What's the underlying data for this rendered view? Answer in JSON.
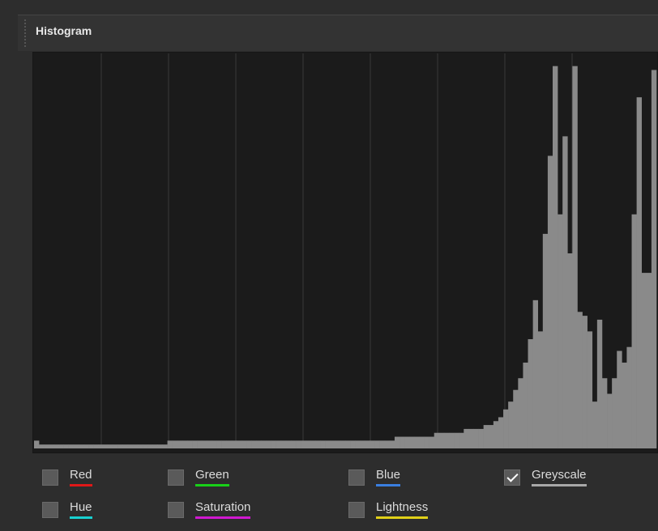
{
  "title": "Histogram",
  "histogram": {
    "ylim": [
      0,
      100
    ],
    "color": "#8a8a8a",
    "values": [
      2,
      1,
      1,
      1,
      1,
      1,
      1,
      1,
      1,
      1,
      1,
      1,
      1,
      1,
      1,
      1,
      1,
      1,
      1,
      1,
      1,
      1,
      1,
      1,
      1,
      1,
      1,
      2,
      2,
      2,
      2,
      2,
      2,
      2,
      2,
      2,
      2,
      2,
      2,
      2,
      2,
      2,
      2,
      2,
      2,
      2,
      2,
      2,
      2,
      2,
      2,
      2,
      2,
      2,
      2,
      2,
      2,
      2,
      2,
      2,
      2,
      2,
      2,
      2,
      2,
      2,
      2,
      2,
      2,
      2,
      2,
      2,
      2,
      3,
      3,
      3,
      3,
      3,
      3,
      3,
      3,
      4,
      4,
      4,
      4,
      4,
      4,
      5,
      5,
      5,
      5,
      6,
      6,
      7,
      8,
      10,
      12,
      15,
      18,
      22,
      28,
      38,
      30,
      55,
      75,
      98,
      60,
      80,
      50,
      98,
      35,
      34,
      30,
      12,
      33,
      18,
      14,
      18,
      25,
      22,
      26,
      60,
      90,
      45,
      45,
      97
    ]
  },
  "channels": [
    {
      "label": "Red",
      "checked": false,
      "color": "#e01818"
    },
    {
      "label": "Green",
      "checked": false,
      "color": "#18d018"
    },
    {
      "label": "Blue",
      "checked": false,
      "color": "#3a7fe0"
    },
    {
      "label": "Greyscale",
      "checked": true,
      "color": "#a8a8a8"
    },
    {
      "label": "Hue",
      "checked": false,
      "color": "#18d0d0"
    },
    {
      "label": "Saturation",
      "checked": false,
      "color": "#d018d0"
    },
    {
      "label": "Lightness",
      "checked": false,
      "color": "#e0d018"
    }
  ]
}
